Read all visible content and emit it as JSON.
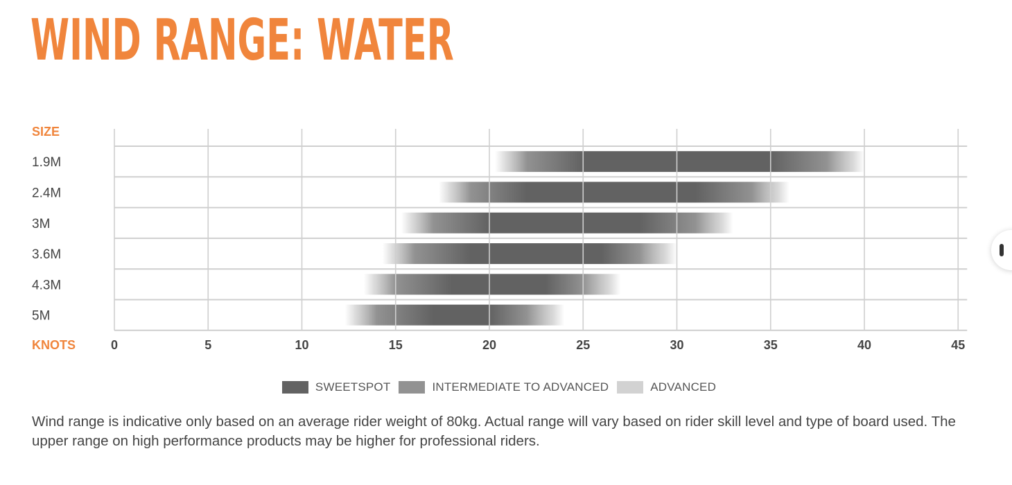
{
  "colors": {
    "accent": "#f0853c",
    "sweetspot": "#626262",
    "intermediate": "#929292",
    "advanced": "#d2d2d2",
    "grid": "#cfcfcf",
    "label": "#444444"
  },
  "chart_data": {
    "type": "bar",
    "title": "WIND RANGE: WATER",
    "y_header": "SIZE",
    "x_header": "KNOTS",
    "xlim": [
      0,
      45
    ],
    "x_ticks": [
      0,
      5,
      10,
      15,
      20,
      25,
      30,
      35,
      40,
      45
    ],
    "grid": "on",
    "legend_placement": "bottom-center",
    "categories": [
      "1.9M",
      "2.4M",
      "3M",
      "3.6M",
      "4.3M",
      "5M"
    ],
    "series": [
      {
        "name": "ADVANCED",
        "values": [
          [
            20.3,
            40
          ],
          [
            17.3,
            36
          ],
          [
            15.3,
            33
          ],
          [
            14.3,
            30
          ],
          [
            13.3,
            27
          ],
          [
            12.3,
            24
          ]
        ]
      },
      {
        "name": "INTERMEDIATE TO ADVANCED",
        "values": [
          [
            22,
            38
          ],
          [
            19,
            34
          ],
          [
            17,
            31
          ],
          [
            16,
            28
          ],
          [
            15,
            25
          ],
          [
            14,
            22
          ]
        ]
      },
      {
        "name": "SWEETSPOT",
        "values": [
          [
            25,
            35
          ],
          [
            22,
            31
          ],
          [
            20,
            28
          ],
          [
            19,
            26
          ],
          [
            18,
            23
          ],
          [
            17,
            20
          ]
        ]
      }
    ]
  },
  "legend": {
    "sweetspot": "SWEETSPOT",
    "intermediate": "INTERMEDIATE TO ADVANCED",
    "advanced": "ADVANCED"
  },
  "footnote": "Wind range is indicative only based on an average rider weight of 80kg. Actual range will vary based on rider skill level and type of board used. The upper range on high performance products may be higher for professional riders."
}
